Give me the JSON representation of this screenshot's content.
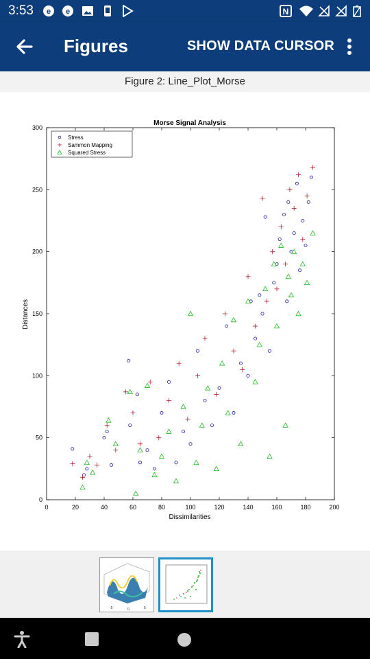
{
  "status_bar": {
    "time": "3:53",
    "left_icons": [
      "e-notification-icon",
      "e-notification-icon",
      "image-icon",
      "phone-icon",
      "play-store-icon"
    ],
    "right_icons": [
      "nfc-icon",
      "wifi-icon",
      "no-signal-icon",
      "no-signal-icon",
      "battery-icon"
    ]
  },
  "app_bar": {
    "title": "Figures",
    "action_label": "SHOW DATA CURSOR",
    "back_icon": "arrow-back-icon",
    "menu_icon": "more-vert-icon"
  },
  "figure": {
    "caption": "Figure 2: Line_Plot_Morse"
  },
  "chart_data": {
    "type": "scatter",
    "title": "Morse Signal Analysis",
    "xlabel": "Dissimilarities",
    "ylabel": "Distances",
    "xlim": [
      0,
      200
    ],
    "ylim": [
      0,
      300
    ],
    "xticks": [
      "0",
      "20",
      "40",
      "60",
      "80",
      "100",
      "120",
      "140",
      "160",
      "180",
      "200"
    ],
    "yticks": [
      "0",
      "50",
      "100",
      "150",
      "200",
      "250",
      "300"
    ],
    "grid": false,
    "legend_position": "top-left",
    "series": [
      {
        "name": "Stress",
        "marker": "circle",
        "color": "#1f1fa0",
        "x": [
          18,
          26,
          28,
          40,
          42,
          45,
          57,
          58,
          63,
          65,
          70,
          75,
          80,
          85,
          90,
          95,
          100,
          105,
          110,
          115,
          120,
          125,
          130,
          135,
          140,
          142,
          145,
          148,
          150,
          152,
          155,
          158,
          160,
          162,
          165,
          167,
          168,
          170,
          172,
          174,
          176,
          178,
          180,
          182,
          184
        ],
        "y": [
          41,
          20,
          25,
          50,
          55,
          28,
          112,
          60,
          85,
          30,
          40,
          25,
          70,
          95,
          30,
          55,
          45,
          120,
          80,
          60,
          90,
          140,
          70,
          110,
          100,
          160,
          130,
          165,
          150,
          228,
          120,
          175,
          190,
          210,
          230,
          160,
          240,
          200,
          215,
          255,
          185,
          225,
          205,
          240,
          260
        ]
      },
      {
        "name": "Sammon Mapping",
        "marker": "plus",
        "color": "#b0202a",
        "x": [
          18,
          25,
          30,
          35,
          42,
          48,
          55,
          60,
          65,
          72,
          78,
          85,
          92,
          98,
          105,
          110,
          118,
          124,
          130,
          136,
          140,
          145,
          150,
          153,
          157,
          160,
          163,
          166,
          169,
          172,
          175,
          178,
          181,
          185
        ],
        "y": [
          29,
          18,
          35,
          28,
          60,
          40,
          87,
          70,
          45,
          95,
          50,
          80,
          110,
          65,
          100,
          130,
          85,
          150,
          120,
          105,
          180,
          140,
          243,
          160,
          200,
          170,
          220,
          190,
          250,
          235,
          262,
          210,
          245,
          268
        ]
      },
      {
        "name": "Squared Stress",
        "marker": "triangle",
        "color": "#22bb22",
        "x": [
          25,
          28,
          32,
          43,
          48,
          58,
          62,
          65,
          70,
          75,
          80,
          85,
          90,
          95,
          100,
          104,
          108,
          112,
          118,
          122,
          126,
          130,
          135,
          140,
          145,
          148,
          152,
          155,
          158,
          160,
          163,
          166,
          168,
          170,
          172,
          175,
          178,
          181,
          185
        ],
        "y": [
          10,
          30,
          22,
          64,
          45,
          87,
          5,
          40,
          92,
          20,
          35,
          55,
          15,
          75,
          150,
          30,
          60,
          90,
          25,
          110,
          70,
          145,
          45,
          160,
          95,
          125,
          170,
          35,
          190,
          140,
          205,
          60,
          180,
          165,
          200,
          150,
          190,
          175,
          215
        ]
      }
    ]
  },
  "thumbnails": [
    {
      "name": "surface-plot-thumbnail",
      "selected": false
    },
    {
      "name": "scatter-plot-thumbnail",
      "selected": true
    }
  ],
  "nav_bar": {
    "icons": [
      "accessibility-icon",
      "recents-icon",
      "home-icon"
    ]
  },
  "colors": {
    "app_bar": "#0d3d7a",
    "selected_thumb_border": "#1e90c8"
  }
}
